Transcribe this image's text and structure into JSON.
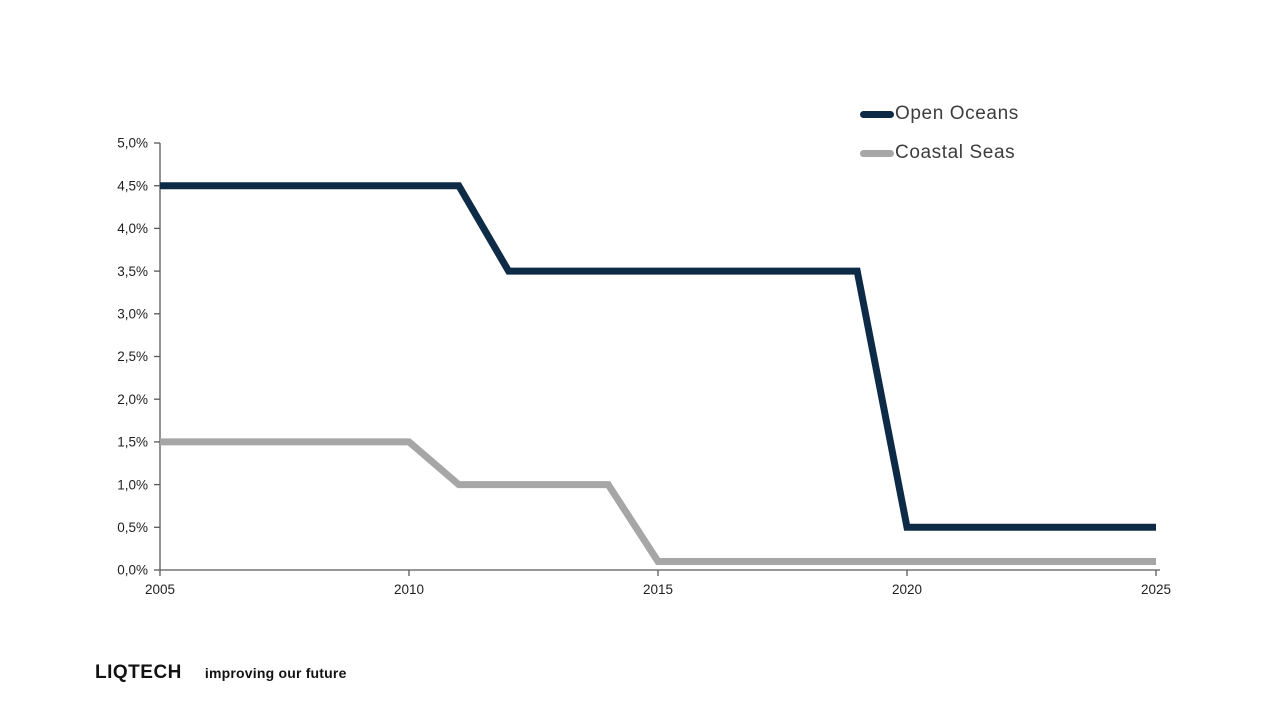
{
  "chart_data": {
    "type": "line",
    "title": "",
    "xlabel": "",
    "ylabel": "",
    "x": [
      2005,
      2006,
      2007,
      2008,
      2009,
      2010,
      2011,
      2012,
      2013,
      2014,
      2015,
      2016,
      2017,
      2018,
      2019,
      2020,
      2021,
      2022,
      2023,
      2024,
      2025
    ],
    "series": [
      {
        "name": "Open Oceans",
        "color": "#0d2a47",
        "values": [
          4.5,
          4.5,
          4.5,
          4.5,
          4.5,
          4.5,
          4.5,
          3.5,
          3.5,
          3.5,
          3.5,
          3.5,
          3.5,
          3.5,
          3.5,
          0.5,
          0.5,
          0.5,
          0.5,
          0.5,
          0.5
        ]
      },
      {
        "name": "Coastal Seas",
        "color": "#a6a6a6",
        "values": [
          1.5,
          1.5,
          1.5,
          1.5,
          1.5,
          1.5,
          1.0,
          1.0,
          1.0,
          1.0,
          0.1,
          0.1,
          0.1,
          0.1,
          0.1,
          0.1,
          0.1,
          0.1,
          0.1,
          0.1,
          0.1
        ]
      }
    ],
    "xlim": [
      2005,
      2025
    ],
    "ylim": [
      0,
      5
    ],
    "xticks": [
      2005,
      2010,
      2015,
      2020,
      2025
    ],
    "ytick_values": [
      0,
      0.5,
      1,
      1.5,
      2,
      2.5,
      3,
      3.5,
      4,
      4.5,
      5
    ],
    "ytick_labels": [
      "0,0%",
      "0,5%",
      "1,0%",
      "1,5%",
      "2,0%",
      "2,5%",
      "3,0%",
      "3,5%",
      "4,0%",
      "4,5%",
      "5,0%"
    ],
    "grid": false,
    "legend_position": "top-right",
    "axis_color": "#595959",
    "line_width": 7
  },
  "footer": {
    "logo_text": "LIQTECH",
    "tagline": "improving our future"
  }
}
